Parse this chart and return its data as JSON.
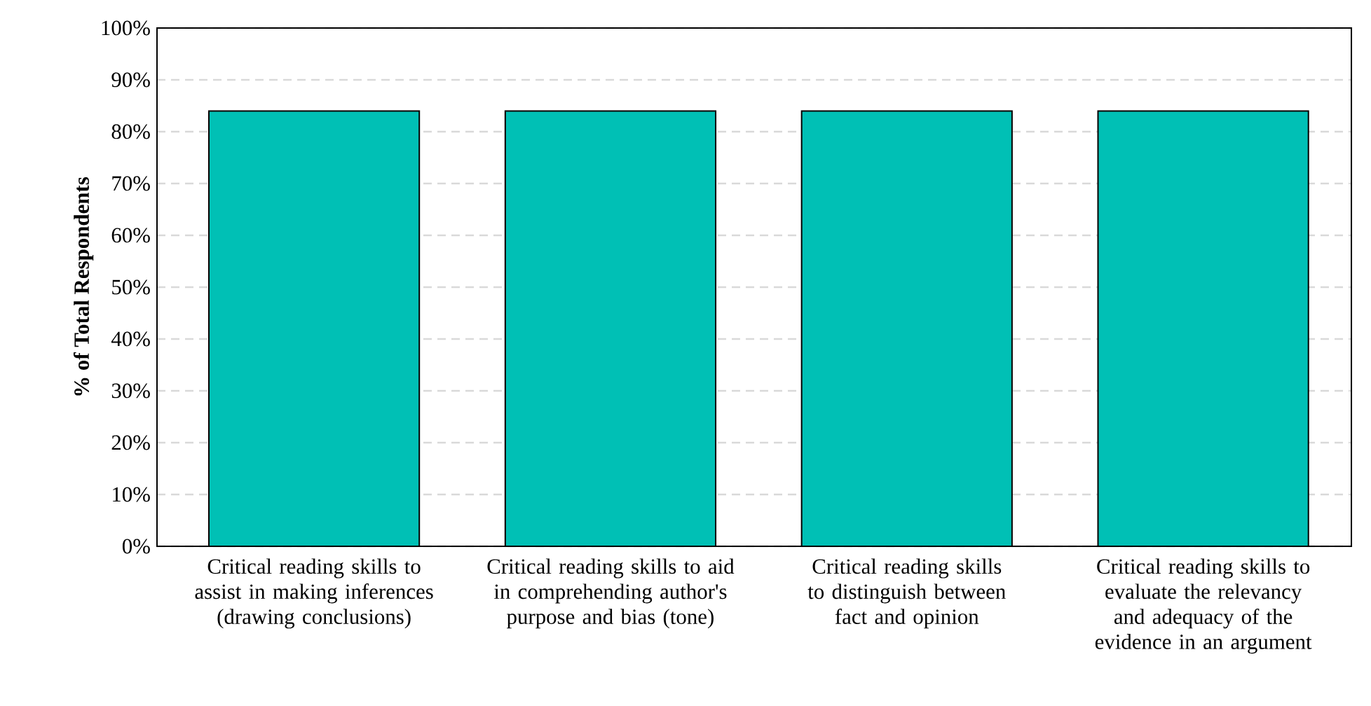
{
  "chart_data": {
    "type": "bar",
    "ylabel": "% of Total Respondents",
    "categories": [
      "Critical reading skills to assist in making inferences (drawing conclusions)",
      "Critical reading skills to aid in comprehending author's purpose and bias (tone)",
      "Critical reading skills to distinguish between fact and opinion",
      "Critical reading skills to evaluate the relevancy and adequacy of the evidence in an argument"
    ],
    "values": [
      84,
      84,
      84,
      84
    ],
    "color": "#00c0b5",
    "ylim": [
      0,
      100
    ],
    "yticks": [
      {
        "value": 0,
        "label": "0%"
      },
      {
        "value": 10,
        "label": "10%"
      },
      {
        "value": 20,
        "label": "20%"
      },
      {
        "value": 30,
        "label": "30%"
      },
      {
        "value": 40,
        "label": "40%"
      },
      {
        "value": 50,
        "label": "50%"
      },
      {
        "value": 60,
        "label": "60%"
      },
      {
        "value": 70,
        "label": "70%"
      },
      {
        "value": 80,
        "label": "80%"
      },
      {
        "value": 90,
        "label": "90%"
      },
      {
        "value": 100,
        "label": "100%"
      }
    ],
    "grid": "y"
  }
}
